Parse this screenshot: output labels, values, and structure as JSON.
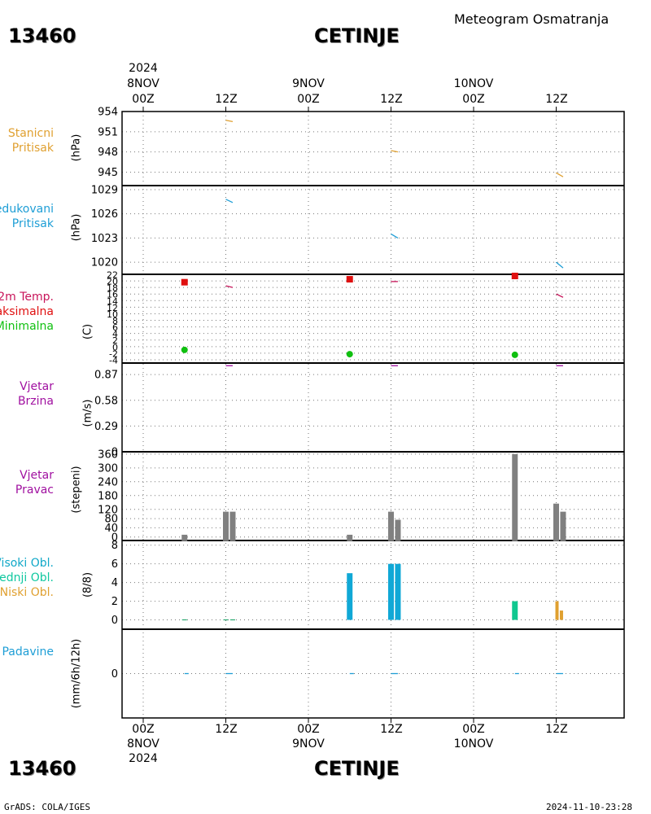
{
  "header": {
    "station_id": "13460",
    "station_name": "CETINJE",
    "title": "Meteogram Osmatranja"
  },
  "footer": {
    "credit": "GrADS: COLA/IGES",
    "timestamp": "2024-11-10-23:28"
  },
  "time_axis_top": {
    "year": "2024",
    "ticks": [
      {
        "hour": "00Z",
        "date": "8NOV"
      },
      {
        "hour": "12Z",
        "date": ""
      },
      {
        "hour": "00Z",
        "date": "9NOV"
      },
      {
        "hour": "12Z",
        "date": ""
      },
      {
        "hour": "00Z",
        "date": "10NOV"
      },
      {
        "hour": "12Z",
        "date": ""
      }
    ]
  },
  "time_axis_bottom": {
    "year": "2024",
    "ticks": [
      {
        "hour": "00Z",
        "date": "8NOV"
      },
      {
        "hour": "12Z",
        "date": ""
      },
      {
        "hour": "00Z",
        "date": "9NOV"
      },
      {
        "hour": "12Z",
        "date": ""
      },
      {
        "hour": "00Z",
        "date": "10NOV"
      },
      {
        "hour": "12Z",
        "date": ""
      }
    ]
  },
  "panel_labels": {
    "station_pressure": {
      "lines": [
        "Stanicni",
        "Pritisak"
      ],
      "unit": "(hPa)",
      "color": "#e0a030"
    },
    "reduced_pressure": {
      "lines": [
        "Redukovani",
        "Pritisak"
      ],
      "unit": "(hPa)",
      "color": "#1e9ed6"
    },
    "temperature": {
      "lines": [
        "2m Temp.",
        "Maksimalna",
        "Minimalna"
      ],
      "unit": "(C)",
      "colors": [
        "#c8145a",
        "#e01010",
        "#10c010"
      ]
    },
    "wind_speed": {
      "lines": [
        "Vjetar",
        "Brzina"
      ],
      "unit": "(m/s)",
      "color": "#a010a0"
    },
    "wind_direction": {
      "lines": [
        "Vjetar",
        "Pravac"
      ],
      "unit": "(stepeni)",
      "color": "#a010a0"
    },
    "clouds": {
      "lines": [
        "Visoki Obl.",
        "Srednji Obl.",
        "Niski Obl."
      ],
      "unit": "(8/8)",
      "colors": [
        "#10a8c8",
        "#10c8a0",
        "#e0a030"
      ]
    },
    "precipitation": {
      "lines": [
        "Padavine"
      ],
      "unit": "(mm/6h/12h)",
      "color": "#1e9ed6"
    }
  },
  "chart_data": [
    {
      "name": "station_pressure",
      "type": "line",
      "ylim": [
        943,
        954
      ],
      "yticks": [
        "945",
        "948",
        "951",
        "954"
      ],
      "ytick_values": [
        945,
        948,
        951,
        954
      ],
      "color": "#e0a030",
      "segments": [
        {
          "x": [
            12,
            13
          ],
          "y": [
            952.7,
            952.5
          ]
        },
        {
          "x": [
            36,
            37
          ],
          "y": [
            948.2,
            948.0
          ]
        },
        {
          "x": [
            60,
            61
          ],
          "y": [
            944.9,
            944.3
          ]
        }
      ]
    },
    {
      "name": "reduced_pressure",
      "type": "line",
      "ylim": [
        1018.5,
        1029.5
      ],
      "yticks": [
        "1020",
        "1023",
        "1026",
        "1029"
      ],
      "ytick_values": [
        1020,
        1023,
        1026,
        1029
      ],
      "color": "#1e9ed6",
      "segments": [
        {
          "x": [
            12,
            13
          ],
          "y": [
            1027.8,
            1027.4
          ]
        },
        {
          "x": [
            36,
            37
          ],
          "y": [
            1023.5,
            1023.0
          ]
        },
        {
          "x": [
            60,
            61
          ],
          "y": [
            1020.0,
            1019.3
          ]
        }
      ]
    },
    {
      "name": "temperature",
      "type": "scatter",
      "ylim": [
        -5,
        22
      ],
      "yticks": [
        "-4",
        "-2",
        "0",
        "2",
        "4",
        "6",
        "8",
        "10",
        "12",
        "14",
        "16",
        "18",
        "20",
        "22"
      ],
      "ytick_values": [
        -4,
        -2,
        0,
        2,
        4,
        6,
        8,
        10,
        12,
        14,
        16,
        18,
        20,
        22
      ],
      "series": [
        {
          "name": "2m Temp.",
          "kind": "line",
          "color": "#c8145a",
          "segments": [
            {
              "x": [
                12,
                13
              ],
              "y": [
                18.5,
                18.0
              ]
            },
            {
              "x": [
                36,
                37
              ],
              "y": [
                19.8,
                19.8
              ]
            },
            {
              "x": [
                60,
                61
              ],
              "y": [
                16.0,
                15.0
              ]
            }
          ]
        },
        {
          "name": "Maksimalna",
          "kind": "square",
          "color": "#e01010",
          "x": [
            6,
            30,
            54
          ],
          "y": [
            19.6,
            20.5,
            21.5
          ]
        },
        {
          "name": "Minimalna",
          "kind": "circle",
          "color": "#10c010",
          "x": [
            6,
            30,
            54
          ],
          "y": [
            -1.0,
            -2.3,
            -2.5
          ]
        }
      ]
    },
    {
      "name": "wind_speed",
      "type": "line",
      "ylim": [
        0,
        1.0
      ],
      "yticks": [
        "0",
        "0.29",
        "0.58",
        "0.87"
      ],
      "ytick_values": [
        0,
        0.29,
        0.58,
        0.87
      ],
      "color": "#a010a0",
      "segments": [
        {
          "x": [
            12,
            13
          ],
          "y": [
            0.97,
            0.97
          ]
        },
        {
          "x": [
            36,
            37
          ],
          "y": [
            0.97,
            0.97
          ]
        },
        {
          "x": [
            60,
            61
          ],
          "y": [
            0.97,
            0.97
          ]
        }
      ]
    },
    {
      "name": "wind_direction",
      "type": "bar",
      "ylim": [
        -15,
        370
      ],
      "yticks": [
        "0",
        "40",
        "80",
        "120",
        "180",
        "240",
        "300",
        "360"
      ],
      "ytick_values": [
        0,
        40,
        80,
        120,
        180,
        240,
        300,
        360
      ],
      "color": "#808080",
      "x": [
        6,
        12,
        13,
        30,
        36,
        37,
        54,
        60,
        61
      ],
      "values": [
        10,
        110,
        110,
        10,
        110,
        75,
        360,
        145,
        110
      ]
    },
    {
      "name": "clouds",
      "type": "bar",
      "ylim": [
        -1,
        8.5
      ],
      "yticks": [
        "0",
        "2",
        "4",
        "6",
        "8"
      ],
      "ytick_values": [
        0,
        2,
        4,
        6,
        8
      ],
      "series": [
        {
          "name": "Visoki Obl.",
          "color": "#10a8d6",
          "x": [
            30,
            36,
            37
          ],
          "values": [
            5,
            6,
            6
          ]
        },
        {
          "name": "Srednji Obl.",
          "color": "#10c890",
          "x": [
            54
          ],
          "values": [
            2
          ]
        },
        {
          "name": "Niski Obl.",
          "color": "#e0a030",
          "x": [
            60,
            61
          ],
          "values": [
            2,
            1
          ]
        }
      ]
    },
    {
      "name": "precipitation",
      "type": "line",
      "ylim": [
        -5,
        5
      ],
      "yticks": [
        "0"
      ],
      "ytick_values": [
        0
      ],
      "color": "#1e9ed6",
      "segments": [
        {
          "x": [
            6,
            6.6
          ],
          "y": [
            0,
            0
          ]
        },
        {
          "x": [
            12,
            13
          ],
          "y": [
            0,
            0
          ]
        },
        {
          "x": [
            30,
            30.6
          ],
          "y": [
            0,
            0
          ]
        },
        {
          "x": [
            36,
            37
          ],
          "y": [
            0,
            0
          ]
        },
        {
          "x": [
            54,
            54.6
          ],
          "y": [
            0,
            0
          ]
        },
        {
          "x": [
            60,
            61
          ],
          "y": [
            0,
            0
          ]
        }
      ]
    }
  ]
}
